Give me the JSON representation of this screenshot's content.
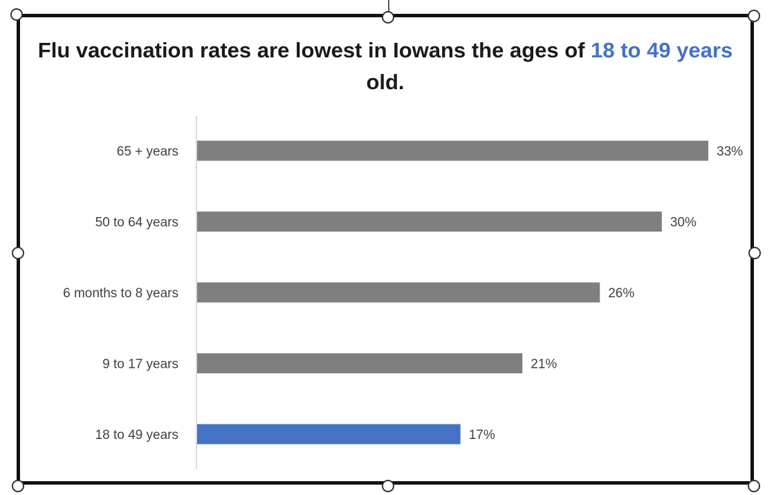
{
  "chart_data": {
    "type": "bar",
    "orientation": "horizontal",
    "title": {
      "prefix": "Flu vaccination rates are lowest in Iowans the ages of",
      "highlight": "18 to 49 years",
      "suffix": "old."
    },
    "categories": [
      "65 + years",
      "50 to 64 years",
      "6 months to 8 years",
      "9 to 17 years",
      "18 to 49 years"
    ],
    "values": [
      33,
      30,
      26,
      21,
      17
    ],
    "value_labels": [
      "33%",
      "30%",
      "26%",
      "21%",
      "17%"
    ],
    "highlight_category": "18 to 49 years",
    "xlim": [
      0,
      33
    ],
    "grid": false,
    "legend": "none",
    "colors": {
      "default_bar": "#7f7f7f",
      "highlight_bar": "#4472c4",
      "title_highlight": "#4472c4",
      "axis": "#d9d9d9"
    }
  }
}
